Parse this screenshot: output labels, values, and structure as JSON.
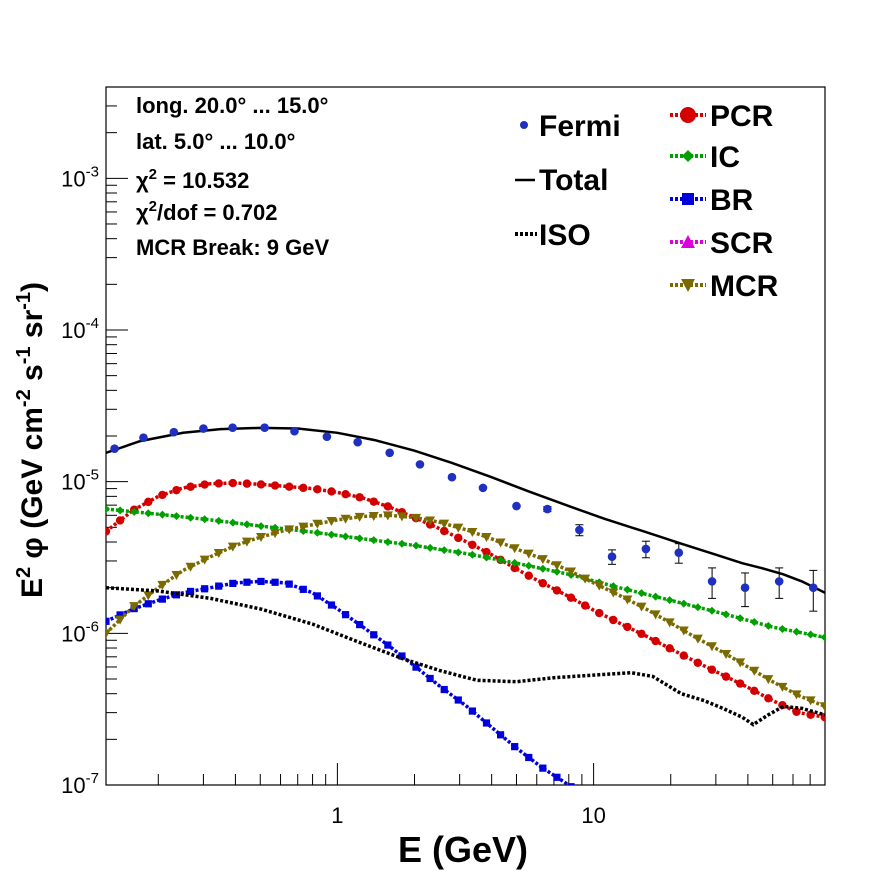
{
  "chart_data": {
    "type": "scatter",
    "xlabel": "E (GeV)",
    "ylabel": {
      "main": "E",
      "sup1": "2",
      "phi": " φ (GeV cm",
      "sup2": "-2",
      "mid": " s",
      "sup3": "-1",
      "mid2": " sr",
      "sup4": "-1",
      "end": ")"
    },
    "x_scale": "log",
    "y_scale": "log",
    "xlim": [
      0.125,
      80
    ],
    "ylim": [
      1e-07,
      0.004
    ],
    "x_tick_labels": [
      {
        "value": 1,
        "label": "1"
      },
      {
        "value": 10,
        "label": "10"
      }
    ],
    "y_tick_labels": [
      {
        "value": 1e-07,
        "base": "10",
        "exp": "-7"
      },
      {
        "value": 1e-06,
        "base": "10",
        "exp": "-6"
      },
      {
        "value": 1e-05,
        "base": "10",
        "exp": "-5"
      },
      {
        "value": 0.0001,
        "base": "10",
        "exp": "-4"
      },
      {
        "value": 0.001,
        "base": "10",
        "exp": "-3"
      }
    ],
    "info": {
      "line1": "long. 20.0° ... 15.0°",
      "line2": "lat. 5.0° ... 10.0°",
      "chi2_symbol": "χ",
      "chi2_sup": "2",
      "chi2_value": " = 10.532",
      "chi2dof_symbol": "χ",
      "chi2dof_sup": "2",
      "chi2dof_value": "/dof = 0.702",
      "line5": "MCR Break:  9 GeV"
    },
    "legend_left": [
      {
        "name": "Fermi",
        "style": "point",
        "color": "#1f2fbf"
      },
      {
        "name": "Total",
        "style": "line",
        "color": "#000000"
      },
      {
        "name": "ISO",
        "style": "dotted",
        "color": "#000000"
      }
    ],
    "legend_right": [
      {
        "name": "PCR",
        "marker": "circle",
        "color": "#d40000"
      },
      {
        "name": "IC",
        "marker": "diamond",
        "color": "#00a000"
      },
      {
        "name": "BR",
        "marker": "square",
        "color": "#0000dd"
      },
      {
        "name": "SCR",
        "marker": "triangle-up",
        "color": "#dd00dd"
      },
      {
        "name": "MCR",
        "marker": "triangle-down",
        "color": "#7a6a00"
      }
    ],
    "fermi": {
      "x": [
        0.135,
        0.175,
        0.23,
        0.3,
        0.39,
        0.52,
        0.68,
        0.91,
        1.2,
        1.6,
        2.1,
        2.8,
        3.7,
        5.0,
        6.6,
        8.8,
        11.8,
        16,
        21.5,
        29,
        39,
        53,
        72
      ],
      "y": [
        1.65e-05,
        1.95e-05,
        2.12e-05,
        2.24e-05,
        2.27e-05,
        2.27e-05,
        2.15e-05,
        1.98e-05,
        1.82e-05,
        1.55e-05,
        1.3e-05,
        1.07e-05,
        9.1e-06,
        6.9e-06,
        6.6e-06,
        4.8e-06,
        3.2e-06,
        3.6e-06,
        3.4e-06,
        2.2e-06,
        2e-06,
        2.2e-06,
        2e-06
      ],
      "yerr_lo": [
        0,
        0,
        0,
        0,
        0,
        0,
        0,
        0,
        0,
        0,
        0,
        0,
        0,
        0,
        2.5e-07,
        4e-07,
        3.5e-07,
        4.5e-07,
        5e-07,
        5e-07,
        5e-07,
        5e-07,
        6e-07
      ],
      "yerr_hi": [
        0,
        0,
        0,
        0,
        0,
        0,
        0,
        0,
        0,
        0,
        0,
        0,
        0,
        0,
        2.5e-07,
        4e-07,
        3.5e-07,
        4.5e-07,
        5e-07,
        5e-07,
        5e-07,
        5e-07,
        6e-07
      ]
    },
    "series": [
      {
        "name": "Total",
        "style": "line",
        "color": "#000000",
        "x": [
          0.125,
          0.17,
          0.25,
          0.35,
          0.5,
          0.7,
          1.0,
          1.4,
          2.0,
          2.8,
          4.0,
          5.6,
          8.0,
          11,
          16,
          22,
          30,
          38,
          45,
          55,
          65,
          80
        ],
        "y": [
          1.55e-05,
          1.85e-05,
          2.1e-05,
          2.22e-05,
          2.26e-05,
          2.24e-05,
          2.1e-05,
          1.88e-05,
          1.6e-05,
          1.33e-05,
          1.07e-05,
          8.6e-06,
          6.9e-06,
          5.7e-06,
          4.65e-06,
          3.9e-06,
          3.3e-06,
          2.9e-06,
          2.7e-06,
          2.45e-06,
          2.2e-06,
          1.85e-06
        ]
      },
      {
        "name": "PCR",
        "style": "marker-line",
        "color": "#d40000",
        "marker": "circle",
        "x": [
          0.125,
          0.16,
          0.2,
          0.25,
          0.32,
          0.4,
          0.5,
          0.63,
          0.8,
          1.0,
          1.26,
          1.6,
          2.0,
          2.5,
          3.2,
          4.0,
          5.0,
          6.3,
          8.0,
          10,
          12.6,
          16,
          20,
          25,
          32,
          40,
          50,
          63,
          80
        ],
        "y": [
          4.7e-06,
          6.5e-06,
          8e-06,
          9.1e-06,
          9.7e-06,
          9.8e-06,
          9.6e-06,
          9.3e-06,
          9e-06,
          8.5e-06,
          7.8e-06,
          6.8e-06,
          5.8e-06,
          4.9e-06,
          4e-06,
          3.3e-06,
          2.65e-06,
          2.15e-06,
          1.75e-06,
          1.42e-06,
          1.17e-06,
          9.6e-07,
          7.9e-07,
          6.5e-07,
          5.3e-07,
          4.4e-07,
          3.6e-07,
          3e-07,
          2.8e-07
        ]
      },
      {
        "name": "IC",
        "style": "marker-line",
        "color": "#00a000",
        "marker": "diamond",
        "x": [
          0.125,
          0.2,
          0.32,
          0.5,
          0.8,
          1.26,
          2.0,
          3.2,
          5.0,
          8.0,
          12.6,
          20,
          32,
          50,
          80
        ],
        "y": [
          6.6e-06,
          6.1e-06,
          5.6e-06,
          5.1e-06,
          4.65e-06,
          4.2e-06,
          3.8e-06,
          3.35e-06,
          2.9e-06,
          2.45e-06,
          2e-06,
          1.65e-06,
          1.35e-06,
          1.1e-06,
          9.4e-07
        ]
      },
      {
        "name": "BR",
        "style": "marker-line",
        "color": "#0000dd",
        "marker": "square",
        "x": [
          0.125,
          0.16,
          0.2,
          0.25,
          0.32,
          0.4,
          0.5,
          0.63,
          0.8,
          1.0,
          1.26,
          1.6,
          2.0,
          2.5,
          3.2,
          4.0,
          5.0,
          6.3,
          8.0,
          10.0
        ],
        "y": [
          1.2e-06,
          1.45e-06,
          1.65e-06,
          1.85e-06,
          2e-06,
          2.15e-06,
          2.2e-06,
          2.15e-06,
          1.85e-06,
          1.45e-06,
          1.1e-06,
          8.2e-07,
          6.1e-07,
          4.5e-07,
          3.3e-07,
          2.4e-07,
          1.75e-07,
          1.3e-07,
          1e-07,
          7.5e-08
        ]
      },
      {
        "name": "MCR",
        "style": "marker-line",
        "color": "#7a6a00",
        "marker": "triangle-down",
        "x": [
          0.125,
          0.16,
          0.2,
          0.25,
          0.32,
          0.4,
          0.5,
          0.63,
          0.8,
          1.0,
          1.26,
          1.6,
          2.0,
          2.5,
          3.2,
          4.0,
          5.0,
          6.3,
          8.0,
          10,
          12.6,
          16,
          20,
          25,
          32,
          40,
          50,
          63,
          80
        ],
        "y": [
          1e-06,
          1.5e-06,
          2e-06,
          2.6e-06,
          3.2e-06,
          3.8e-06,
          4.3e-06,
          4.8e-06,
          5.2e-06,
          5.6e-06,
          5.9e-06,
          6e-06,
          5.8e-06,
          5.4e-06,
          4.8e-06,
          4.2e-06,
          3.6e-06,
          3.1e-06,
          2.6e-06,
          2.15e-06,
          1.78e-06,
          1.45e-06,
          1.17e-06,
          9.4e-07,
          7.5e-07,
          6e-07,
          4.8e-07,
          3.9e-07,
          3.3e-07
        ]
      },
      {
        "name": "ISO",
        "style": "dotted",
        "color": "#000000",
        "x": [
          0.125,
          0.2,
          0.32,
          0.5,
          0.8,
          1.2,
          1.8,
          2.5,
          3.5,
          5.0,
          7.0,
          10,
          14,
          17,
          22,
          27,
          32,
          38,
          42,
          48,
          55,
          65,
          80
        ],
        "y": [
          2e-06,
          1.9e-06,
          1.7e-06,
          1.45e-06,
          1.15e-06,
          8.8e-07,
          6.8e-07,
          5.7e-07,
          4.9e-07,
          4.8e-07,
          5.1e-07,
          5.3e-07,
          5.5e-07,
          5.2e-07,
          4e-07,
          3.6e-07,
          3.2e-07,
          2.8e-07,
          2.5e-07,
          2.9e-07,
          3.3e-07,
          3.2e-07,
          2.9e-07
        ]
      }
    ]
  }
}
